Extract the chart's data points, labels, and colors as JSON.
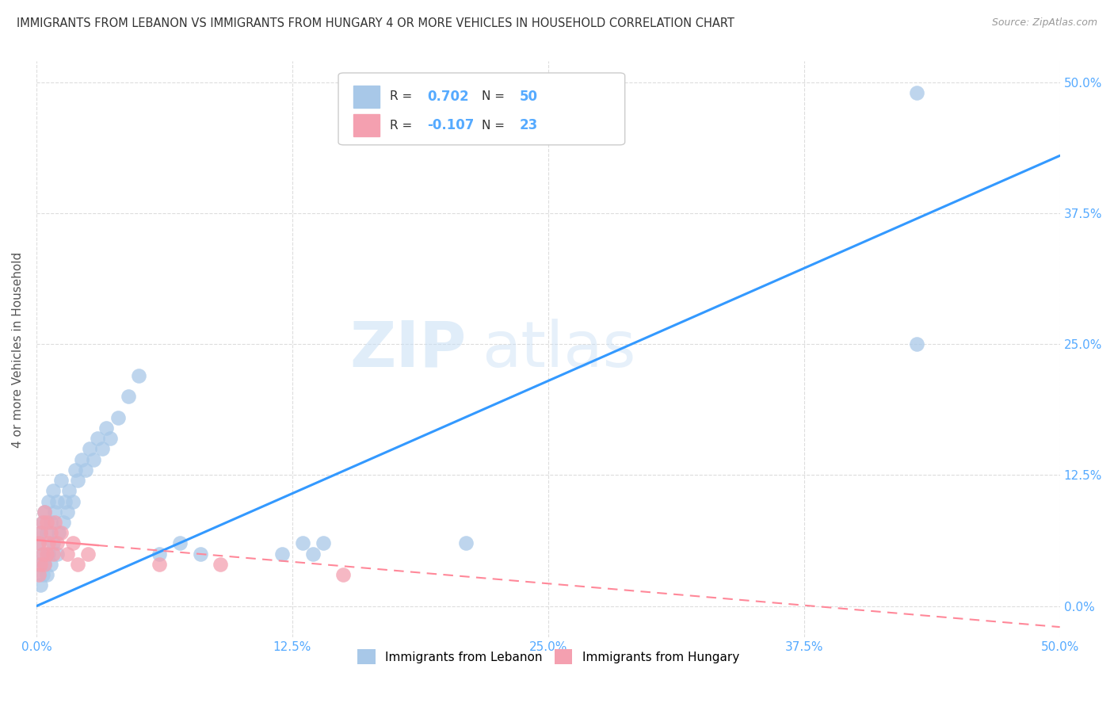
{
  "title": "IMMIGRANTS FROM LEBANON VS IMMIGRANTS FROM HUNGARY 4 OR MORE VEHICLES IN HOUSEHOLD CORRELATION CHART",
  "source": "Source: ZipAtlas.com",
  "ylabel": "4 or more Vehicles in Household",
  "legend_label1": "Immigrants from Lebanon",
  "legend_label2": "Immigrants from Hungary",
  "R1": 0.702,
  "N1": 50,
  "R2": -0.107,
  "N2": 23,
  "color1": "#A8C8E8",
  "color2": "#F4A0B0",
  "line_color1": "#3399FF",
  "line_color2": "#FF8899",
  "xmin": 0.0,
  "xmax": 0.5,
  "ymin": -0.03,
  "ymax": 0.52,
  "watermark_zip": "ZIP",
  "watermark_atlas": "atlas",
  "title_color": "#333333",
  "source_color": "#999999",
  "axis_label_color": "#555555",
  "tick_color": "#55AAFF",
  "grid_color": "#DDDDDD",
  "lebanon_x": [
    0.001,
    0.001,
    0.002,
    0.002,
    0.003,
    0.003,
    0.003,
    0.004,
    0.004,
    0.005,
    0.005,
    0.006,
    0.006,
    0.007,
    0.007,
    0.008,
    0.008,
    0.009,
    0.01,
    0.01,
    0.011,
    0.012,
    0.013,
    0.014,
    0.015,
    0.016,
    0.018,
    0.019,
    0.02,
    0.022,
    0.024,
    0.026,
    0.028,
    0.03,
    0.032,
    0.034,
    0.036,
    0.04,
    0.045,
    0.05,
    0.06,
    0.07,
    0.08,
    0.12,
    0.13,
    0.135,
    0.14,
    0.21,
    0.43,
    0.43
  ],
  "lebanon_y": [
    0.04,
    0.06,
    0.02,
    0.07,
    0.03,
    0.05,
    0.08,
    0.04,
    0.09,
    0.03,
    0.07,
    0.05,
    0.1,
    0.04,
    0.08,
    0.06,
    0.11,
    0.09,
    0.05,
    0.1,
    0.07,
    0.12,
    0.08,
    0.1,
    0.09,
    0.11,
    0.1,
    0.13,
    0.12,
    0.14,
    0.13,
    0.15,
    0.14,
    0.16,
    0.15,
    0.17,
    0.16,
    0.18,
    0.2,
    0.22,
    0.05,
    0.06,
    0.05,
    0.05,
    0.06,
    0.05,
    0.06,
    0.06,
    0.25,
    0.49
  ],
  "hungary_x": [
    0.001,
    0.001,
    0.002,
    0.002,
    0.003,
    0.003,
    0.004,
    0.004,
    0.005,
    0.005,
    0.006,
    0.007,
    0.008,
    0.009,
    0.01,
    0.012,
    0.015,
    0.018,
    0.02,
    0.025,
    0.06,
    0.09,
    0.15
  ],
  "hungary_y": [
    0.03,
    0.06,
    0.04,
    0.07,
    0.05,
    0.08,
    0.04,
    0.09,
    0.05,
    0.08,
    0.06,
    0.07,
    0.05,
    0.08,
    0.06,
    0.07,
    0.05,
    0.06,
    0.04,
    0.05,
    0.04,
    0.04,
    0.03
  ],
  "leb_trend_x0": 0.0,
  "leb_trend_y0": 0.0,
  "leb_trend_x1": 0.5,
  "leb_trend_y1": 0.43,
  "hun_trend_x0": 0.0,
  "hun_trend_y0": 0.063,
  "hun_trend_x1": 0.5,
  "hun_trend_y1": -0.02
}
